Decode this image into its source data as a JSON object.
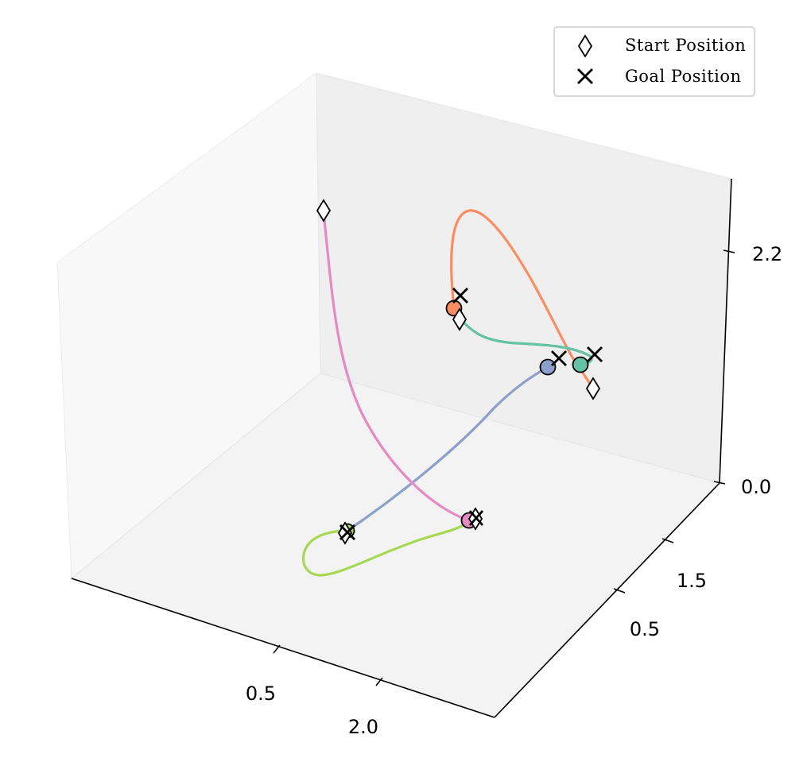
{
  "chart_data": {
    "type": "line",
    "projection": "3d",
    "title": "",
    "xlabel": "",
    "ylabel": "",
    "zlabel": "",
    "x_ticks": [
      "0.5",
      "2.0"
    ],
    "y_ticks": [
      "0.5",
      "1.5"
    ],
    "z_ticks": [
      "0.0",
      "2.2"
    ],
    "grid": false,
    "legend_placement": "top-right",
    "legend": [
      {
        "label": "Start Position",
        "marker": "diamond-icon"
      },
      {
        "label": "Goal Position",
        "marker": "x-icon"
      }
    ],
    "colors": {
      "teal": "#66c2a5",
      "orange": "#fc8d62",
      "blue": "#8da0cb",
      "pink": "#e78ac3",
      "green": "#a6d854"
    }
  }
}
